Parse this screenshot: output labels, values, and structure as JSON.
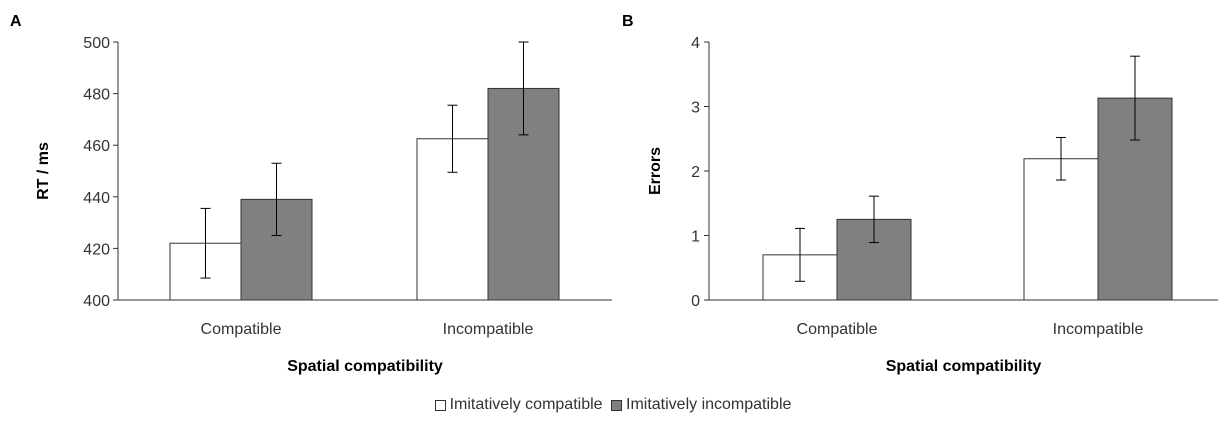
{
  "chart_data": [
    {
      "type": "bar",
      "panel": "A",
      "categories": [
        "Compatible",
        "Incompatible"
      ],
      "series": [
        {
          "name": "Imitatively compatible",
          "values": [
            422,
            462.5
          ],
          "err": [
            13.5,
            13
          ]
        },
        {
          "name": "Imitatively incompatible",
          "values": [
            439,
            482
          ],
          "err": [
            14,
            18
          ]
        }
      ],
      "xlabel": "Spatial compatibility",
      "ylabel": "RT / ms",
      "ylim": [
        400,
        500
      ],
      "yticks": [
        400,
        420,
        440,
        460,
        480,
        500
      ],
      "grid": false
    },
    {
      "type": "bar",
      "panel": "B",
      "categories": [
        "Compatible",
        "Incompatible"
      ],
      "series": [
        {
          "name": "Imitatively compatible",
          "values": [
            0.7,
            2.19
          ],
          "err": [
            0.41,
            0.33
          ]
        },
        {
          "name": "Imitatively incompatible",
          "values": [
            1.25,
            3.13
          ],
          "err": [
            0.36,
            0.65
          ]
        }
      ],
      "xlabel": "Spatial compatibility",
      "ylabel": "Errors",
      "ylim": [
        0,
        4
      ],
      "yticks": [
        0,
        1,
        2,
        3,
        4
      ],
      "grid": false
    }
  ],
  "legend": {
    "placement": "bottom-center",
    "items": [
      {
        "label": "Imitatively compatible",
        "color": "#ffffff"
      },
      {
        "label": "Imitatively incompatible",
        "color": "#808080"
      }
    ]
  },
  "colors": {
    "bar_compatible": "#ffffff",
    "bar_incompatible": "#808080",
    "axis": "#333333"
  }
}
